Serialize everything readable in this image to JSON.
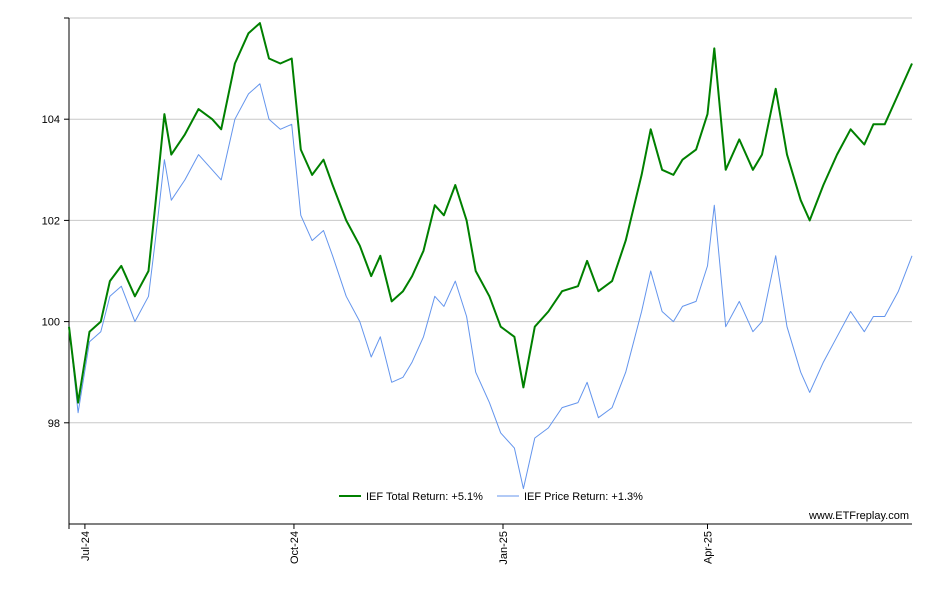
{
  "chart_data": {
    "type": "line",
    "title": "",
    "xlabel": "",
    "ylabel": "",
    "ylim": [
      96,
      106
    ],
    "yticks": [
      98,
      100,
      102,
      104
    ],
    "xlim": [
      "2024-06-24",
      "2025-06-30"
    ],
    "xticks": [
      {
        "label": "Jul-24",
        "date": "2024-07-01"
      },
      {
        "label": "Oct-24",
        "date": "2024-10-01"
      },
      {
        "label": "Jan-25",
        "date": "2025-01-01"
      },
      {
        "label": "Apr-25",
        "date": "2025-04-01"
      }
    ],
    "grid": "horizontal",
    "legend_position": "bottom-center",
    "legend": [
      {
        "label": "IEF Total Return: +5.1%",
        "color": "#008000"
      },
      {
        "label": "IEF Price Return: +1.3%",
        "color": "#6495ED"
      }
    ],
    "watermark": "www.ETFreplay.com",
    "series": [
      {
        "name": "IEF Total Return",
        "color": "#008000",
        "points": [
          [
            "2024-06-24",
            99.9
          ],
          [
            "2024-06-28",
            98.4
          ],
          [
            "2024-07-03",
            99.8
          ],
          [
            "2024-07-08",
            100.0
          ],
          [
            "2024-07-12",
            100.8
          ],
          [
            "2024-07-17",
            101.1
          ],
          [
            "2024-07-23",
            100.5
          ],
          [
            "2024-07-29",
            101.0
          ],
          [
            "2024-08-01",
            102.3
          ],
          [
            "2024-08-05",
            104.1
          ],
          [
            "2024-08-08",
            103.3
          ],
          [
            "2024-08-14",
            103.7
          ],
          [
            "2024-08-20",
            104.2
          ],
          [
            "2024-08-26",
            104.0
          ],
          [
            "2024-08-30",
            103.8
          ],
          [
            "2024-09-05",
            105.1
          ],
          [
            "2024-09-11",
            105.7
          ],
          [
            "2024-09-16",
            105.9
          ],
          [
            "2024-09-20",
            105.2
          ],
          [
            "2024-09-25",
            105.1
          ],
          [
            "2024-09-30",
            105.2
          ],
          [
            "2024-10-04",
            103.4
          ],
          [
            "2024-10-09",
            102.9
          ],
          [
            "2024-10-14",
            103.2
          ],
          [
            "2024-10-18",
            102.7
          ],
          [
            "2024-10-24",
            102.0
          ],
          [
            "2024-10-30",
            101.5
          ],
          [
            "2024-11-04",
            100.9
          ],
          [
            "2024-11-08",
            101.3
          ],
          [
            "2024-11-13",
            100.4
          ],
          [
            "2024-11-18",
            100.6
          ],
          [
            "2024-11-22",
            100.9
          ],
          [
            "2024-11-27",
            101.4
          ],
          [
            "2024-12-02",
            102.3
          ],
          [
            "2024-12-06",
            102.1
          ],
          [
            "2024-12-11",
            102.7
          ],
          [
            "2024-12-16",
            102.0
          ],
          [
            "2024-12-20",
            101.0
          ],
          [
            "2024-12-26",
            100.5
          ],
          [
            "2024-12-31",
            99.9
          ],
          [
            "2025-01-06",
            99.7
          ],
          [
            "2025-01-10",
            98.7
          ],
          [
            "2025-01-15",
            99.9
          ],
          [
            "2025-01-21",
            100.2
          ],
          [
            "2025-01-27",
            100.6
          ],
          [
            "2025-02-03",
            100.7
          ],
          [
            "2025-02-07",
            101.2
          ],
          [
            "2025-02-12",
            100.6
          ],
          [
            "2025-02-18",
            100.8
          ],
          [
            "2025-02-24",
            101.6
          ],
          [
            "2025-03-03",
            102.9
          ],
          [
            "2025-03-07",
            103.8
          ],
          [
            "2025-03-12",
            103.0
          ],
          [
            "2025-03-17",
            102.9
          ],
          [
            "2025-03-21",
            103.2
          ],
          [
            "2025-03-27",
            103.4
          ],
          [
            "2025-04-01",
            104.1
          ],
          [
            "2025-04-04",
            105.4
          ],
          [
            "2025-04-09",
            103.0
          ],
          [
            "2025-04-15",
            103.6
          ],
          [
            "2025-04-21",
            103.0
          ],
          [
            "2025-04-25",
            103.3
          ],
          [
            "2025-05-01",
            104.6
          ],
          [
            "2025-05-06",
            103.3
          ],
          [
            "2025-05-12",
            102.4
          ],
          [
            "2025-05-16",
            102.0
          ],
          [
            "2025-05-22",
            102.7
          ],
          [
            "2025-05-28",
            103.3
          ],
          [
            "2025-06-03",
            103.8
          ],
          [
            "2025-06-09",
            103.5
          ],
          [
            "2025-06-13",
            103.9
          ],
          [
            "2025-06-18",
            103.9
          ],
          [
            "2025-06-24",
            104.5
          ],
          [
            "2025-06-30",
            105.1
          ]
        ]
      },
      {
        "name": "IEF Price Return",
        "color": "#6495ED",
        "points": [
          [
            "2024-06-24",
            99.9
          ],
          [
            "2024-06-28",
            98.2
          ],
          [
            "2024-07-03",
            99.6
          ],
          [
            "2024-07-08",
            99.8
          ],
          [
            "2024-07-12",
            100.5
          ],
          [
            "2024-07-17",
            100.7
          ],
          [
            "2024-07-23",
            100.0
          ],
          [
            "2024-07-29",
            100.5
          ],
          [
            "2024-08-01",
            101.6
          ],
          [
            "2024-08-05",
            103.2
          ],
          [
            "2024-08-08",
            102.4
          ],
          [
            "2024-08-14",
            102.8
          ],
          [
            "2024-08-20",
            103.3
          ],
          [
            "2024-08-26",
            103.0
          ],
          [
            "2024-08-30",
            102.8
          ],
          [
            "2024-09-05",
            104.0
          ],
          [
            "2024-09-11",
            104.5
          ],
          [
            "2024-09-16",
            104.7
          ],
          [
            "2024-09-20",
            104.0
          ],
          [
            "2024-09-25",
            103.8
          ],
          [
            "2024-09-30",
            103.9
          ],
          [
            "2024-10-04",
            102.1
          ],
          [
            "2024-10-09",
            101.6
          ],
          [
            "2024-10-14",
            101.8
          ],
          [
            "2024-10-18",
            101.3
          ],
          [
            "2024-10-24",
            100.5
          ],
          [
            "2024-10-30",
            100.0
          ],
          [
            "2024-11-04",
            99.3
          ],
          [
            "2024-11-08",
            99.7
          ],
          [
            "2024-11-13",
            98.8
          ],
          [
            "2024-11-18",
            98.9
          ],
          [
            "2024-11-22",
            99.2
          ],
          [
            "2024-11-27",
            99.7
          ],
          [
            "2024-12-02",
            100.5
          ],
          [
            "2024-12-06",
            100.3
          ],
          [
            "2024-12-11",
            100.8
          ],
          [
            "2024-12-16",
            100.1
          ],
          [
            "2024-12-20",
            99.0
          ],
          [
            "2024-12-26",
            98.4
          ],
          [
            "2024-12-31",
            97.8
          ],
          [
            "2025-01-06",
            97.5
          ],
          [
            "2025-01-10",
            96.7
          ],
          [
            "2025-01-15",
            97.7
          ],
          [
            "2025-01-21",
            97.9
          ],
          [
            "2025-01-27",
            98.3
          ],
          [
            "2025-02-03",
            98.4
          ],
          [
            "2025-02-07",
            98.8
          ],
          [
            "2025-02-12",
            98.1
          ],
          [
            "2025-02-18",
            98.3
          ],
          [
            "2025-02-24",
            99.0
          ],
          [
            "2025-03-03",
            100.2
          ],
          [
            "2025-03-07",
            101.0
          ],
          [
            "2025-03-12",
            100.2
          ],
          [
            "2025-03-17",
            100.0
          ],
          [
            "2025-03-21",
            100.3
          ],
          [
            "2025-03-27",
            100.4
          ],
          [
            "2025-04-01",
            101.1
          ],
          [
            "2025-04-04",
            102.3
          ],
          [
            "2025-04-09",
            99.9
          ],
          [
            "2025-04-15",
            100.4
          ],
          [
            "2025-04-21",
            99.8
          ],
          [
            "2025-04-25",
            100.0
          ],
          [
            "2025-05-01",
            101.3
          ],
          [
            "2025-05-06",
            99.9
          ],
          [
            "2025-05-12",
            99.0
          ],
          [
            "2025-05-16",
            98.6
          ],
          [
            "2025-05-22",
            99.2
          ],
          [
            "2025-05-28",
            99.7
          ],
          [
            "2025-06-03",
            100.2
          ],
          [
            "2025-06-09",
            99.8
          ],
          [
            "2025-06-13",
            100.1
          ],
          [
            "2025-06-18",
            100.1
          ],
          [
            "2025-06-24",
            100.6
          ],
          [
            "2025-06-30",
            101.3
          ]
        ]
      }
    ]
  }
}
